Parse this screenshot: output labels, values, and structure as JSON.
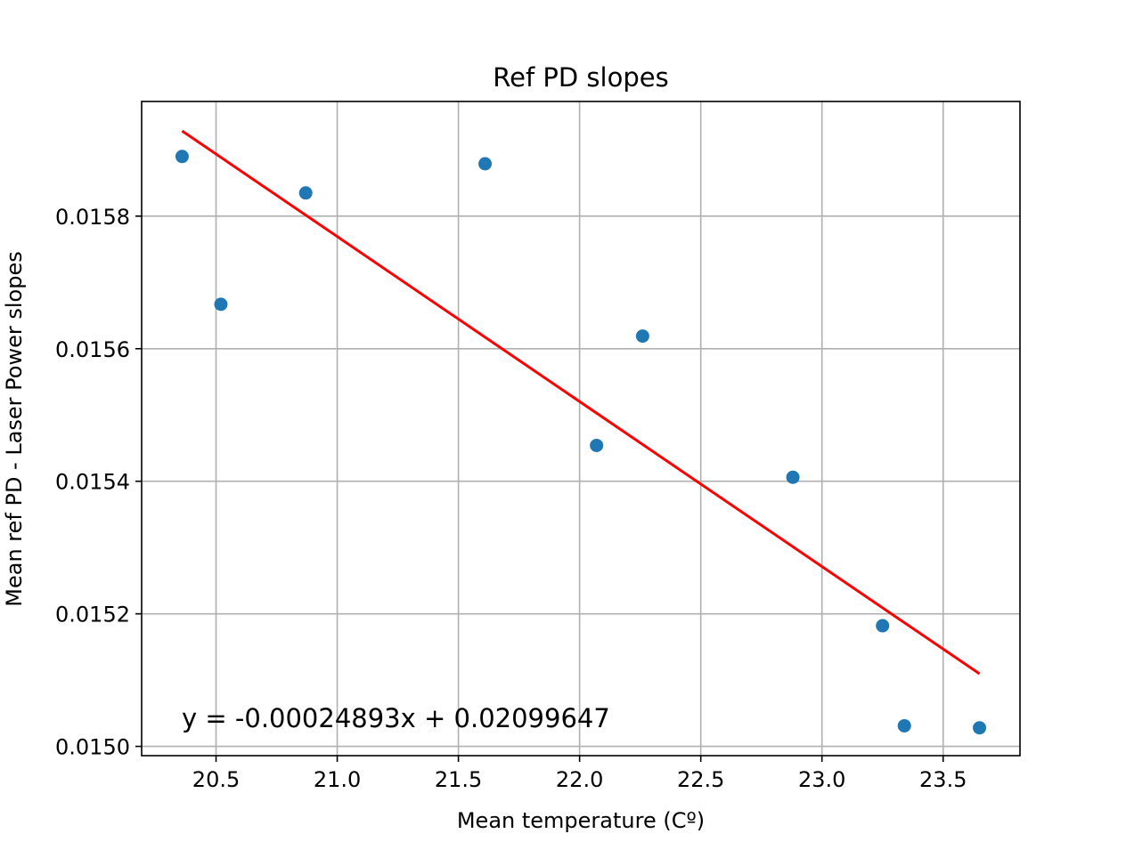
{
  "chart_data": {
    "type": "scatter",
    "title": "Ref PD slopes",
    "xlabel": "Mean temperature (Cº)",
    "ylabel": "Mean ref PD - Laser Power slopes",
    "xlim": [
      20.193,
      23.817
    ],
    "ylim": [
      0.014986,
      0.015973
    ],
    "x_ticks": [
      20.5,
      21.0,
      21.5,
      22.0,
      22.5,
      23.0,
      23.5
    ],
    "x_tick_labels": [
      "20.5",
      "21.0",
      "21.5",
      "22.0",
      "22.5",
      "23.0",
      "23.5"
    ],
    "y_ticks": [
      0.015,
      0.0152,
      0.0154,
      0.0156,
      0.0158
    ],
    "y_tick_labels": [
      "0.0150",
      "0.0152",
      "0.0154",
      "0.0156",
      "0.0158"
    ],
    "grid": true,
    "points": [
      {
        "x": 20.36,
        "y": 0.01589
      },
      {
        "x": 20.52,
        "y": 0.015667
      },
      {
        "x": 20.87,
        "y": 0.015835
      },
      {
        "x": 21.61,
        "y": 0.015879
      },
      {
        "x": 22.07,
        "y": 0.015454
      },
      {
        "x": 22.26,
        "y": 0.015619
      },
      {
        "x": 22.88,
        "y": 0.015406
      },
      {
        "x": 23.25,
        "y": 0.015182
      },
      {
        "x": 23.34,
        "y": 0.015031
      },
      {
        "x": 23.65,
        "y": 0.015028
      }
    ],
    "fit_line": {
      "x": [
        20.36,
        23.65
      ],
      "y": [
        0.0159285,
        0.0151095
      ],
      "equation": "y = -0.00024893x + 0.02099647"
    },
    "colors": {
      "points": "#1f77b4",
      "fit_line": "#ff0000",
      "grid": "#b0b0b0",
      "axes": "#000000"
    }
  }
}
